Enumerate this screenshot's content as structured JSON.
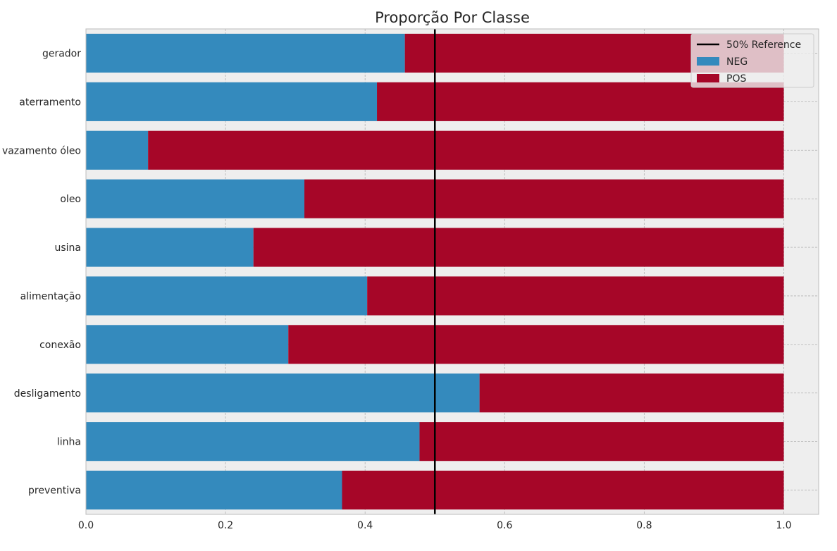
{
  "chart_data": {
    "type": "bar",
    "orientation": "horizontal",
    "stacked": true,
    "title": "Proporção Por Classe",
    "xlabel": "",
    "ylabel": "",
    "xlim": [
      0,
      1.05
    ],
    "xticks": [
      "0.0",
      "0.2",
      "0.4",
      "0.6",
      "0.8",
      "1.0"
    ],
    "categories": [
      "gerador",
      "aterramento",
      "vazamento óleo",
      "oleo",
      "usina",
      "alimentação",
      "conexão",
      "desligamento",
      "linha",
      "preventiva"
    ],
    "series": [
      {
        "name": "NEG",
        "color": "#348ABD",
        "values": [
          0.457,
          0.417,
          0.089,
          0.313,
          0.24,
          0.403,
          0.29,
          0.564,
          0.478,
          0.367
        ]
      },
      {
        "name": "POS",
        "color": "#A60628",
        "values": [
          0.543,
          0.583,
          0.911,
          0.687,
          0.76,
          0.597,
          0.71,
          0.436,
          0.522,
          0.633
        ]
      }
    ],
    "reference_line": {
      "name": "50% Reference",
      "x": 0.5,
      "color": "#000000"
    },
    "grid": true,
    "legend": "top-right",
    "legend_entries": [
      "50% Reference",
      "NEG",
      "POS"
    ],
    "background": "#EEEEEE"
  }
}
